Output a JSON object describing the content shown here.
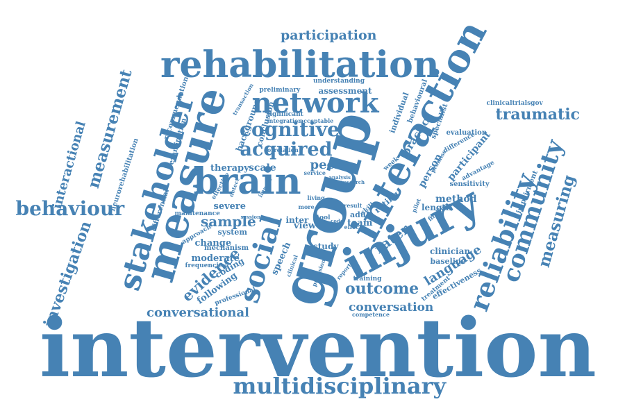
{
  "color": "#4682b4",
  "words": [
    "intervention",
    "group",
    "injury",
    "measure",
    "interaction",
    "rehabilitation",
    "stakeholder",
    "brain",
    "social",
    "network",
    "multidisciplinary",
    "reliability",
    "community",
    "behaviour",
    "cognitive",
    "acquired",
    "measuring",
    "traumatic",
    "participation",
    "measurement",
    "investigation",
    "outcome",
    "evidence",
    "sample",
    "conversational",
    "conversation",
    "interactional",
    "language",
    "rater",
    "peer",
    "method",
    "scale",
    "therapy",
    "severe",
    "moderate",
    "change",
    "following",
    "coding",
    "team",
    "practice",
    "participant",
    "person",
    "clinician",
    "baseline",
    "length",
    "assessment",
    "study",
    "view",
    "inter",
    "adult",
    "effectiveness",
    "rating",
    "speech",
    "background",
    "conclusion",
    "individual",
    "neurorehabilitation",
    "recommendation",
    "examination",
    "differential",
    "system",
    "mechanism",
    "frequencies",
    "maintenance",
    "approach",
    "professional",
    "sensitivity",
    "impairment",
    "advantage",
    "difference",
    "evaluation",
    "clinicaltrialsgov",
    "specialist",
    "behavioural",
    "understanding",
    "preliminary",
    "significant",
    "correlation",
    "acceptable",
    "integration",
    "service",
    "week",
    "training",
    "report",
    "provision",
    "clinical",
    "competence",
    "treatment",
    "finding",
    "living",
    "tool",
    "result",
    "skill",
    "effect",
    "pilot",
    "promise",
    "transaction",
    "impact",
    "detect",
    "effective",
    "research",
    "analysis",
    "session",
    "more",
    "code"
  ]
}
